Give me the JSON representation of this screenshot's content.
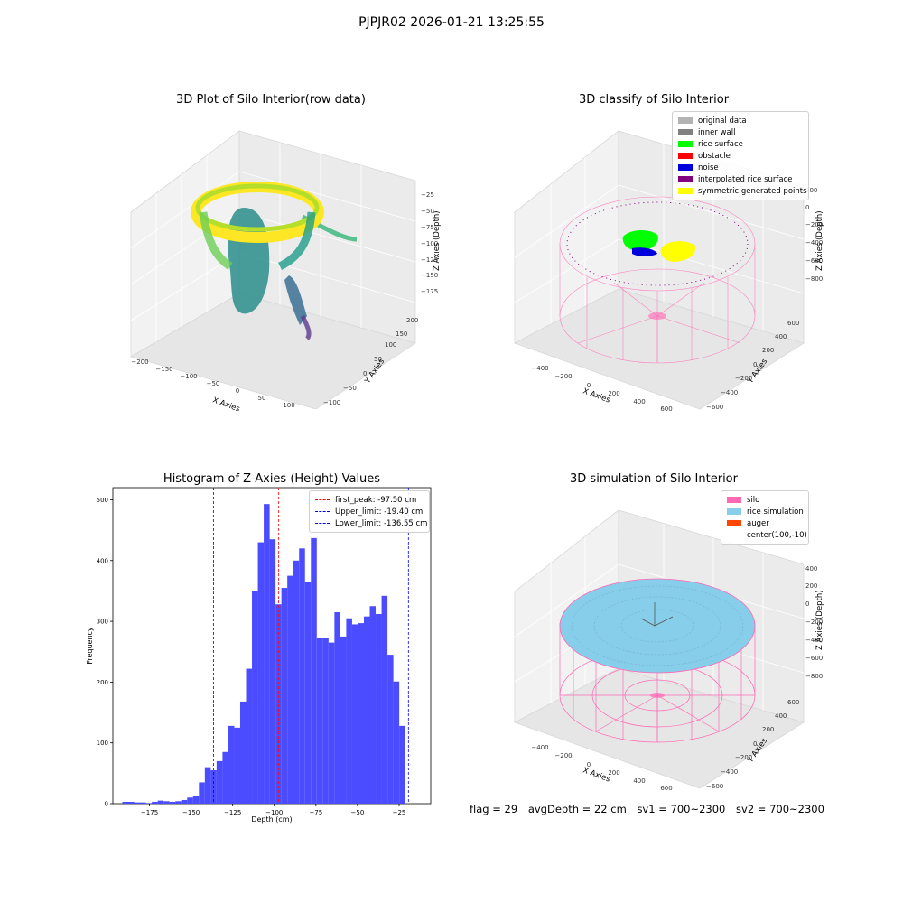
{
  "suptitle": "PJPJR02 2026-01-21 13:25:55",
  "panel1": {
    "title": "3D Plot of Silo Interior(row data)",
    "xlabel": "X Axies",
    "ylabel": "Y Axies",
    "zlabel": "Z Axies (Depth)",
    "xticks": [
      "−200",
      "−150",
      "−100",
      "−50",
      "0",
      "50",
      "100"
    ],
    "yticks": [
      "−100",
      "−50",
      "0",
      "50",
      "100",
      "150",
      "200"
    ],
    "zticks": [
      "−25",
      "−50",
      "−75",
      "−100",
      "−125",
      "−150",
      "−175"
    ]
  },
  "panel2": {
    "title": "3D classify of Silo Interior",
    "xlabel": "X Axies",
    "ylabel": "Y Axies",
    "zlabel": "Z Axies (Depth)",
    "xticks": [
      "−400",
      "−200",
      "0",
      "200",
      "400",
      "600"
    ],
    "yticks": [
      "−600",
      "−400",
      "−200",
      "0",
      "200",
      "400",
      "600"
    ],
    "zticks": [
      "200",
      "0",
      "−200",
      "−400",
      "−600",
      "−800"
    ],
    "legend": [
      {
        "label": "original data",
        "color": "#b3b3b3"
      },
      {
        "label": "inner wall",
        "color": "#808080"
      },
      {
        "label": "rice surface",
        "color": "#00ff00"
      },
      {
        "label": "obstacle",
        "color": "#ff0000"
      },
      {
        "label": "noise",
        "color": "#0000dd"
      },
      {
        "label": "interpolated rice surface",
        "color": "#800080"
      },
      {
        "label": "symmetric generated points",
        "color": "#ffff00"
      }
    ]
  },
  "panel3": {
    "title": "3D simulation of Silo Interior",
    "xlabel": "X Axies",
    "ylabel": "Y Axies",
    "zlabel": "Z Axies (Depth)",
    "xticks": [
      "−400",
      "−200",
      "0",
      "200",
      "400",
      "600"
    ],
    "yticks": [
      "−600",
      "−400",
      "−200",
      "0",
      "200",
      "400",
      "600"
    ],
    "zticks": [
      "400",
      "200",
      "0",
      "−200",
      "−400",
      "−600",
      "−800"
    ],
    "legend": [
      {
        "label": "silo",
        "color": "#ff69b4"
      },
      {
        "label": "rice simulation",
        "color": "#87ceeb"
      },
      {
        "label": "auger",
        "color": "#ff4500"
      },
      {
        "label": "center(100,-10)",
        "color": ""
      }
    ]
  },
  "status": {
    "flag": "flag = 29",
    "avg_depth": "avgDepth = 22 cm",
    "sv1": "sv1 = 700~2300",
    "sv2": "sv2 = 700~2300"
  },
  "chart_data": {
    "type": "bar",
    "title": "Histogram of Z-Axies (Height) Values",
    "xlabel": "Depth (cm)",
    "ylabel": "Frequency",
    "xlim": [
      -197,
      -6
    ],
    "ylim": [
      0,
      520
    ],
    "xticks": [
      -175,
      -150,
      -125,
      -100,
      -75,
      -50,
      -25
    ],
    "xtick_labels": [
      "−175",
      "−150",
      "−125",
      "−100",
      "−75",
      "−50",
      "−25"
    ],
    "yticks": [
      0,
      100,
      200,
      300,
      400,
      500
    ],
    "bar_color": "#4b4bff",
    "bin_edges": [
      -191.3,
      -187.76,
      -184.22,
      -180.68,
      -177.14,
      -173.6,
      -170.06,
      -166.52,
      -162.98,
      -159.44,
      -155.9,
      -152.36,
      -148.82,
      -145.28,
      -141.74,
      -138.2,
      -134.66,
      -131.12,
      -127.58,
      -124.04,
      -120.5,
      -116.96,
      -113.42,
      -109.88,
      -106.34,
      -102.8,
      -99.26,
      -95.72,
      -92.18,
      -88.64,
      -85.1,
      -81.56,
      -78.02,
      -74.48,
      -70.94,
      -67.4,
      -63.86,
      -60.32,
      -56.78,
      -53.24,
      -49.7,
      -46.16,
      -42.62,
      -39.08,
      -35.54,
      -32.0,
      -28.46,
      -24.92,
      -21.38,
      -17.84,
      -14.3,
      -10.76
    ],
    "counts": [
      3,
      3,
      2,
      2,
      1,
      3,
      5,
      4,
      3,
      4,
      6,
      10,
      13,
      35,
      60,
      55,
      70,
      85,
      128,
      125,
      168,
      222,
      350,
      430,
      493,
      435,
      328,
      355,
      375,
      400,
      420,
      365,
      437,
      272,
      272,
      265,
      315,
      275,
      305,
      295,
      297,
      308,
      325,
      312,
      342,
      245,
      201,
      128,
      0,
      0,
      0
    ],
    "lines": [
      {
        "label": "first_peak: -97.50 cm",
        "x": -97.5,
        "color": "#ff0000"
      },
      {
        "label": "Upper_limit: -19.40 cm",
        "x": -19.4,
        "color": "#0000ff"
      },
      {
        "label": "Lower_limit: -136.55 cm",
        "x": -136.55,
        "color": "#0000ff"
      }
    ]
  }
}
